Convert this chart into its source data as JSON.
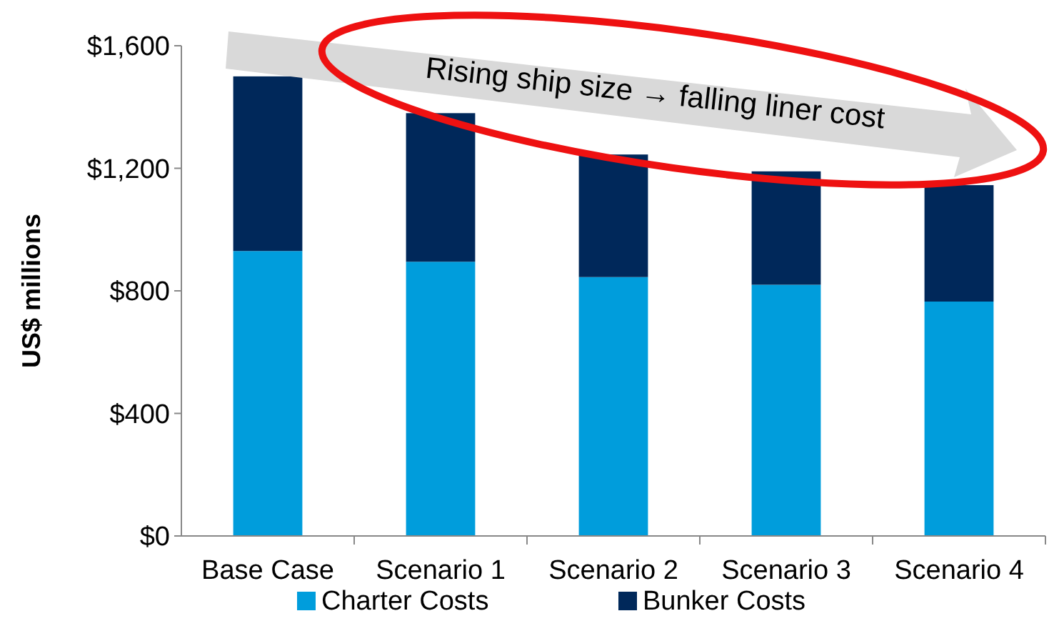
{
  "chart_data": {
    "type": "bar",
    "stacked": true,
    "ylabel": "US$ millions",
    "categories": [
      "Base Case",
      "Scenario 1",
      "Scenario 2",
      "Scenario 3",
      "Scenario 4"
    ],
    "series": [
      {
        "name": "Charter Costs",
        "color": "#009ddc",
        "values": [
          930,
          895,
          845,
          820,
          765
        ]
      },
      {
        "name": "Bunker Costs",
        "color": "#00285a",
        "values": [
          570,
          485,
          400,
          370,
          380
        ]
      }
    ],
    "ylim": [
      0,
      1600
    ],
    "yticks": [
      {
        "value": 0,
        "label": "$0"
      },
      {
        "value": 400,
        "label": "$400"
      },
      {
        "value": 800,
        "label": "$800"
      },
      {
        "value": 1200,
        "label": "$1,200"
      },
      {
        "value": 1600,
        "label": "$1,600"
      }
    ],
    "legend": "bottom",
    "annotations": [
      "Rising ship size → falling liner cost"
    ]
  }
}
